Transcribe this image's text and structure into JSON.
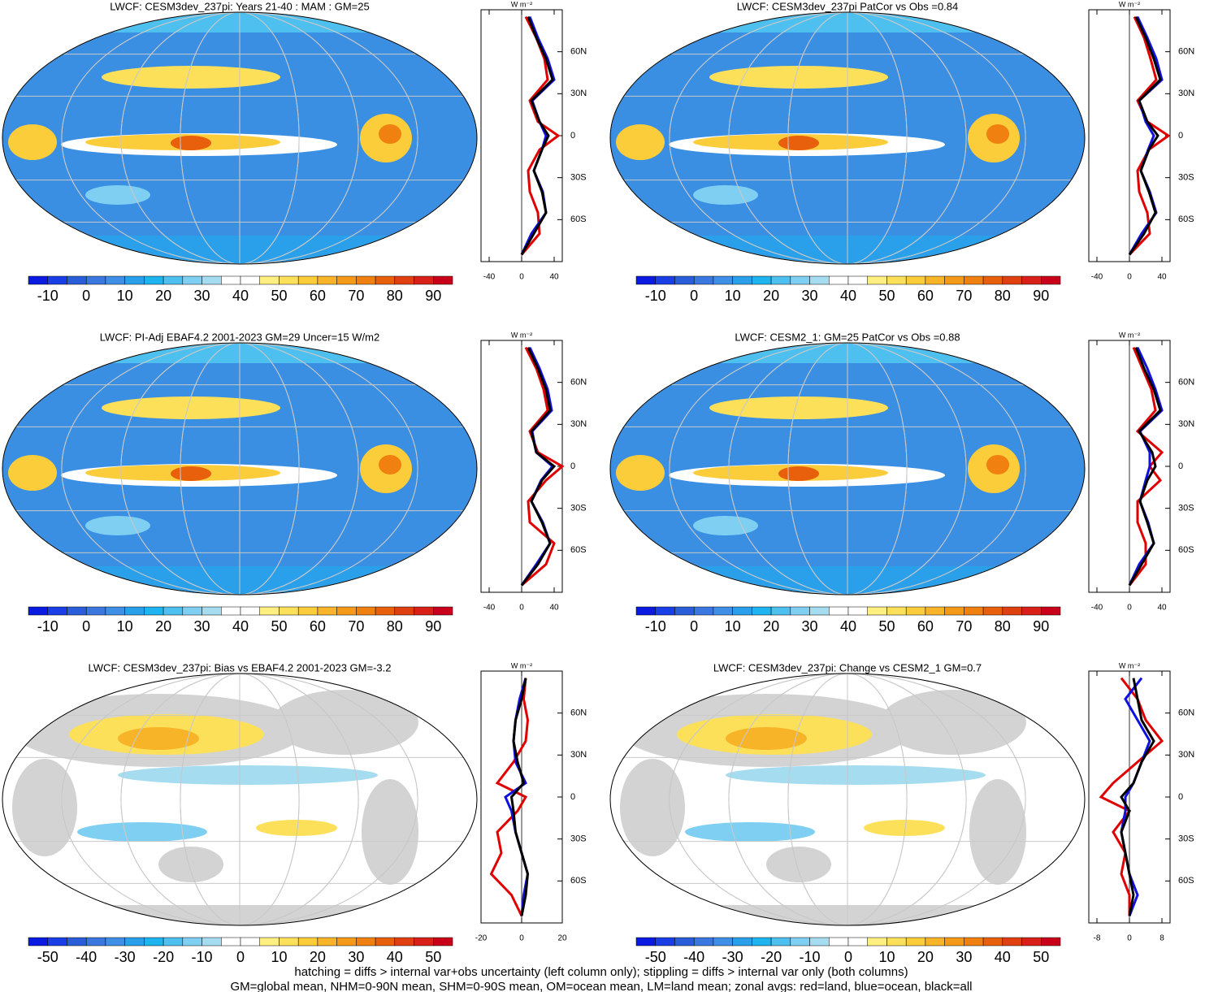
{
  "chart_data": [
    {
      "type": "map",
      "title": "LWCF: CESM3dev_237pi: Years 21-40 : MAM : GM=25",
      "field": "mean",
      "colorbar": {
        "ticks": [
          -10,
          0,
          10,
          20,
          30,
          40,
          50,
          60,
          70,
          80,
          90
        ],
        "colors": [
          "#0a1ae0",
          "#1a3ee6",
          "#2a5ed8",
          "#3a78e0",
          "#3f8fe6",
          "#2aa0ea",
          "#1eb4f0",
          "#4ec0f0",
          "#7ecff2",
          "#a6dcf0",
          "#ffffff",
          "#ffffff",
          "#ffee80",
          "#fde05a",
          "#fbcd3a",
          "#f8b428",
          "#f59a18",
          "#f08010",
          "#e8600c",
          "#e04010",
          "#d82018",
          "#c8001a"
        ]
      },
      "zonal": {
        "type": "line",
        "unit": "W m⁻²",
        "y": [
          -85,
          -70,
          -55,
          -40,
          -25,
          -10,
          0,
          10,
          25,
          40,
          55,
          70,
          85
        ],
        "xlim": [
          -50,
          50
        ],
        "xticks": [
          -40,
          0,
          40
        ],
        "ylim": [
          -90,
          90
        ],
        "yticks": [
          {
            "value": -60,
            "label": "60S"
          },
          {
            "value": -30,
            "label": "30S"
          },
          0,
          {
            "value": 30,
            "label": "30N"
          },
          {
            "value": 60,
            "label": "60N"
          }
        ],
        "series": [
          {
            "color": "#e00000",
            "values": [
              0,
              22,
              20,
              10,
              8,
              22,
              45,
              20,
              10,
              32,
              28,
              18,
              5
            ]
          },
          {
            "color": "#1010e0",
            "values": [
              0,
              12,
              30,
              26,
              15,
              25,
              30,
              22,
              13,
              40,
              32,
              20,
              10
            ]
          },
          {
            "color": "#000000",
            "values": [
              0,
              15,
              30,
              25,
              15,
              25,
              33,
              22,
              12,
              38,
              30,
              18,
              8
            ]
          }
        ]
      }
    },
    {
      "type": "map",
      "title": "LWCF: CESM3dev_237pi PatCor vs Obs =0.84",
      "field": "mean",
      "colorbar": {
        "ticks": [
          -10,
          0,
          10,
          20,
          30,
          40,
          50,
          60,
          70,
          80,
          90
        ],
        "colors": [
          "#0a1ae0",
          "#1a3ee6",
          "#2a5ed8",
          "#3a78e0",
          "#3f8fe6",
          "#2aa0ea",
          "#1eb4f0",
          "#4ec0f0",
          "#7ecff2",
          "#a6dcf0",
          "#ffffff",
          "#ffffff",
          "#ffee80",
          "#fde05a",
          "#fbcd3a",
          "#f8b428",
          "#f59a18",
          "#f08010",
          "#e8600c",
          "#e04010",
          "#d82018",
          "#c8001a"
        ]
      },
      "zonal": {
        "type": "line",
        "unit": "W m⁻²",
        "y": [
          -85,
          -70,
          -55,
          -40,
          -25,
          -10,
          0,
          10,
          25,
          40,
          55,
          70,
          85
        ],
        "xlim": [
          -50,
          50
        ],
        "xticks": [
          -40,
          0,
          40
        ],
        "ylim": [
          -90,
          90
        ],
        "yticks": [
          {
            "value": -60,
            "label": "60S"
          },
          {
            "value": -30,
            "label": "30S"
          },
          0,
          {
            "value": 30,
            "label": "30N"
          },
          {
            "value": 60,
            "label": "60N"
          }
        ],
        "series": [
          {
            "color": "#e00000",
            "values": [
              0,
              25,
              22,
              12,
              10,
              24,
              48,
              22,
              10,
              33,
              26,
              18,
              6
            ]
          },
          {
            "color": "#1010e0",
            "values": [
              0,
              15,
              33,
              25,
              14,
              23,
              30,
              20,
              12,
              40,
              33,
              22,
              10
            ]
          },
          {
            "color": "#000000",
            "values": [
              0,
              18,
              32,
              24,
              14,
              24,
              35,
              22,
              12,
              38,
              30,
              20,
              8
            ]
          }
        ]
      }
    },
    {
      "type": "map",
      "title": "LWCF: PI-Adj EBAF4.2 2001-2023 GM=29 Uncer=15 W/m2",
      "field": "mean",
      "colorbar": {
        "ticks": [
          -10,
          0,
          10,
          20,
          30,
          40,
          50,
          60,
          70,
          80,
          90
        ],
        "colors": [
          "#0a1ae0",
          "#1a3ee6",
          "#2a5ed8",
          "#3a78e0",
          "#3f8fe6",
          "#2aa0ea",
          "#1eb4f0",
          "#4ec0f0",
          "#7ecff2",
          "#a6dcf0",
          "#ffffff",
          "#ffffff",
          "#ffee80",
          "#fde05a",
          "#fbcd3a",
          "#f8b428",
          "#f59a18",
          "#f08010",
          "#e8600c",
          "#e04010",
          "#d82018",
          "#c8001a"
        ]
      },
      "zonal": {
        "type": "line",
        "unit": "W m⁻²",
        "y": [
          -85,
          -70,
          -55,
          -40,
          -25,
          -10,
          0,
          10,
          25,
          40,
          55,
          70,
          85
        ],
        "xlim": [
          -50,
          50
        ],
        "xticks": [
          -40,
          0,
          40
        ],
        "ylim": [
          -90,
          90
        ],
        "yticks": [
          {
            "value": -60,
            "label": "60S"
          },
          {
            "value": -30,
            "label": "30S"
          },
          0,
          {
            "value": 30,
            "label": "30N"
          },
          {
            "value": 60,
            "label": "60N"
          }
        ],
        "series": [
          {
            "color": "#e00000",
            "values": [
              0,
              30,
              40,
              10,
              8,
              30,
              50,
              20,
              10,
              32,
              27,
              18,
              5
            ]
          },
          {
            "color": "#1010e0",
            "values": [
              0,
              18,
              35,
              26,
              12,
              24,
              38,
              18,
              13,
              37,
              32,
              22,
              10
            ]
          },
          {
            "color": "#000000",
            "values": [
              0,
              20,
              35,
              25,
              12,
              25,
              40,
              18,
              12,
              35,
              30,
              20,
              8
            ]
          }
        ]
      }
    },
    {
      "type": "map",
      "title": "LWCF: CESM2_1: GM=25 PatCor vs Obs =0.88",
      "field": "mean",
      "colorbar": {
        "ticks": [
          -10,
          0,
          10,
          20,
          30,
          40,
          50,
          60,
          70,
          80,
          90
        ],
        "colors": [
          "#0a1ae0",
          "#1a3ee6",
          "#2a5ed8",
          "#3a78e0",
          "#3f8fe6",
          "#2aa0ea",
          "#1eb4f0",
          "#4ec0f0",
          "#7ecff2",
          "#a6dcf0",
          "#ffffff",
          "#ffffff",
          "#ffee80",
          "#fde05a",
          "#fbcd3a",
          "#f8b428",
          "#f59a18",
          "#f08010",
          "#e8600c",
          "#e04010",
          "#d82018",
          "#c8001a"
        ]
      },
      "zonal": {
        "type": "line",
        "unit": "W m⁻²",
        "y": [
          -85,
          -70,
          -55,
          -40,
          -25,
          -10,
          0,
          10,
          25,
          40,
          55,
          70,
          85
        ],
        "xlim": [
          -50,
          50
        ],
        "xticks": [
          -40,
          0,
          40
        ],
        "ylim": [
          -90,
          90
        ],
        "yticks": [
          {
            "value": -60,
            "label": "60S"
          },
          {
            "value": -30,
            "label": "30S"
          },
          0,
          {
            "value": 30,
            "label": "30N"
          },
          {
            "value": 60,
            "label": "60N"
          }
        ],
        "series": [
          {
            "color": "#e00000",
            "values": [
              0,
              20,
              20,
              10,
              10,
              38,
              25,
              40,
              10,
              32,
              27,
              16,
              5
            ]
          },
          {
            "color": "#1010e0",
            "values": [
              0,
              12,
              30,
              23,
              13,
              20,
              25,
              25,
              13,
              40,
              32,
              22,
              10
            ]
          },
          {
            "color": "#000000",
            "values": [
              0,
              15,
              30,
              22,
              13,
              22,
              32,
              28,
              12,
              38,
              30,
              18,
              8
            ]
          }
        ]
      }
    },
    {
      "type": "map",
      "title": "LWCF: CESM3dev_237pi: Bias vs EBAF4.2 2001-2023 GM=-3.2",
      "field": "diff",
      "colorbar": {
        "ticks": [
          -50,
          -40,
          -30,
          -20,
          -10,
          0,
          10,
          20,
          30,
          40,
          50
        ],
        "colors": [
          "#0a1ae0",
          "#1a3ee6",
          "#2a5ed8",
          "#3a78e0",
          "#3f8fe6",
          "#2aa0ea",
          "#1eb4f0",
          "#4ec0f0",
          "#7ecff2",
          "#a6dcf0",
          "#ffffff",
          "#ffffff",
          "#ffee80",
          "#fde05a",
          "#fbcd3a",
          "#f8b428",
          "#f59a18",
          "#f08010",
          "#e8600c",
          "#e04010",
          "#d82018",
          "#c8001a"
        ]
      },
      "zonal": {
        "type": "line",
        "unit": "W m⁻²",
        "y": [
          -85,
          -70,
          -55,
          -40,
          -25,
          -10,
          0,
          10,
          25,
          40,
          55,
          70,
          85
        ],
        "xlim": [
          -20,
          20
        ],
        "xticks": [
          -20,
          0,
          20
        ],
        "ylim": [
          -90,
          90
        ],
        "yticks": [
          {
            "value": -60,
            "label": "60S"
          },
          {
            "value": -30,
            "label": "30S"
          },
          0,
          {
            "value": 30,
            "label": "30N"
          },
          {
            "value": 60,
            "label": "60N"
          }
        ],
        "series": [
          {
            "color": "#e00000",
            "values": [
              0,
              -5,
              -15,
              -10,
              -12,
              -2,
              2,
              -12,
              -4,
              2,
              3,
              1,
              2
            ]
          },
          {
            "color": "#1010e0",
            "values": [
              0,
              1,
              3,
              0,
              -3,
              -5,
              -8,
              2,
              -3,
              -4,
              -3,
              -1,
              2
            ]
          },
          {
            "color": "#000000",
            "values": [
              0,
              2,
              3,
              0,
              -3,
              -4,
              -5,
              1,
              -2,
              -4,
              -3,
              0,
              2
            ]
          }
        ]
      }
    },
    {
      "type": "map",
      "title": "LWCF: CESM3dev_237pi: Change vs CESM2_1 GM=0.7",
      "field": "diff",
      "colorbar": {
        "ticks": [
          -50,
          -40,
          -30,
          -20,
          -10,
          0,
          10,
          20,
          30,
          40,
          50
        ],
        "colors": [
          "#0a1ae0",
          "#1a3ee6",
          "#2a5ed8",
          "#3a78e0",
          "#3f8fe6",
          "#2aa0ea",
          "#1eb4f0",
          "#4ec0f0",
          "#7ecff2",
          "#a6dcf0",
          "#ffffff",
          "#ffffff",
          "#ffee80",
          "#fde05a",
          "#fbcd3a",
          "#f8b428",
          "#f59a18",
          "#f08010",
          "#e8600c",
          "#e04010",
          "#d82018",
          "#c8001a"
        ]
      },
      "zonal": {
        "type": "line",
        "unit": "W m⁻²",
        "y": [
          -85,
          -70,
          -55,
          -40,
          -25,
          -10,
          0,
          10,
          25,
          40,
          55,
          70,
          85
        ],
        "xlim": [
          -10,
          10
        ],
        "xticks": [
          -8,
          0,
          8
        ],
        "ylim": [
          -90,
          90
        ],
        "yticks": [
          {
            "value": -60,
            "label": "60S"
          },
          {
            "value": -30,
            "label": "30S"
          },
          0,
          {
            "value": 30,
            "label": "30N"
          },
          {
            "value": 60,
            "label": "60N"
          }
        ],
        "series": [
          {
            "color": "#e00000",
            "values": [
              0,
              0,
              -2,
              -1,
              -4,
              0,
              -7,
              -4,
              2,
              8,
              4,
              2,
              -2
            ]
          },
          {
            "color": "#1010e0",
            "values": [
              0,
              2,
              0,
              -1,
              -2,
              -1,
              -1,
              1,
              3,
              5,
              2,
              -1,
              3
            ]
          },
          {
            "color": "#000000",
            "values": [
              0,
              1,
              0,
              -1,
              -2,
              0,
              -2,
              1,
              3,
              6,
              3,
              2,
              1
            ]
          }
        ]
      }
    }
  ],
  "footer": [
    "hatching = diffs > internal var+obs uncertainty (left column only); stippling = diffs > internal var only (both columns)",
    "GM=global mean, NHM=0-90N mean, SHM=0-90S mean, OM=ocean mean, LM=land mean; zonal avgs: red=land, blue=ocean, black=all"
  ]
}
